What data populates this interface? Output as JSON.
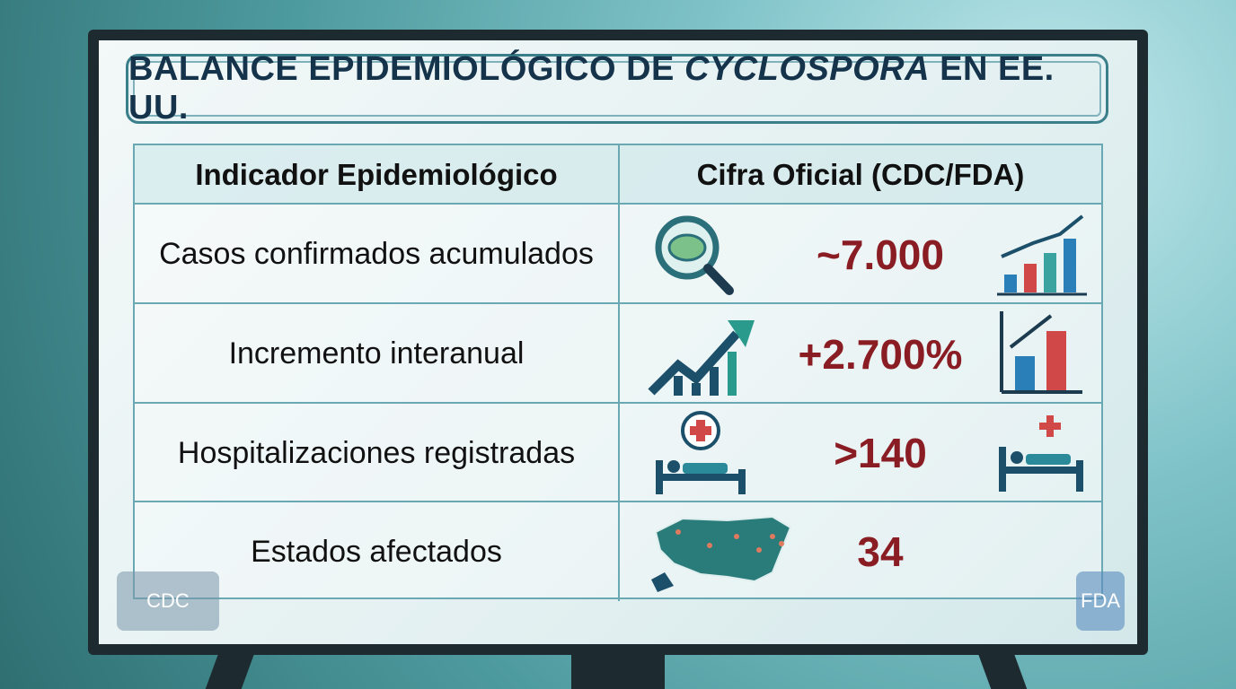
{
  "header": {
    "title": [
      "BALANCE EPIDEMIOLÓGICO DE",
      "CYCLOSPORA",
      "EN EE. UU."
    ]
  },
  "table": {
    "columns": [
      "Indicador Epidemiológico",
      "Cifra Oficial (CDC/FDA)"
    ],
    "rows": [
      [
        "Casos confirmados acumulados",
        "~7.000"
      ],
      [
        "Incremento interanual",
        "+2.700%"
      ],
      [
        "Hospitalizaciones registradas",
        ">140"
      ],
      [
        "Estados afectados",
        "34"
      ]
    ]
  },
  "logos": [
    "CDC",
    "FDA"
  ]
}
